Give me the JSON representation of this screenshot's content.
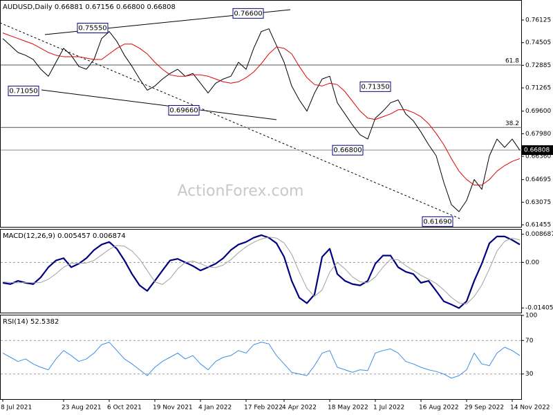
{
  "chart_data": [
    {
      "type": "line",
      "title": "AUDUSD,Daily 0.66881 0.67156 0.66800 0.66808",
      "watermark": "ActionForex.com",
      "ylim": [
        0.6131,
        0.7751
      ],
      "yticks": [
        0.76125,
        0.74505,
        0.72885,
        0.71265,
        {
          "value": 0.696,
          "label": "0.69600"
        },
        {
          "value": 0.6798,
          "label": "0.67980"
        },
        {
          "value": 0.6636,
          "label": "0.66360"
        },
        0.64695,
        0.63075,
        0.61455
      ],
      "last_price": 0.66808,
      "fib_levels": [
        {
          "label": "61.8",
          "value": 0.729
        },
        {
          "label": "38.2",
          "value": 0.6843
        }
      ],
      "annotations": [
        {
          "value": 0.7555,
          "label": "0.75550"
        },
        {
          "value": 0.766,
          "label": "0.76600"
        },
        {
          "value": 0.7105,
          "label": "0.71050"
        },
        {
          "value": 0.6966,
          "label": "0.69660"
        },
        {
          "value": 0.668,
          "label": "0.66800"
        },
        {
          "value": 0.7135,
          "label": "0.71350"
        },
        {
          "value": 0.6169,
          "label": "0.61690"
        }
      ],
      "series": [
        {
          "name": "AUDUSD",
          "color": "#000000",
          "values": [
            0.748,
            0.743,
            0.738,
            0.736,
            0.733,
            0.726,
            0.721,
            0.731,
            0.741,
            0.736,
            0.728,
            0.726,
            0.733,
            0.748,
            0.753,
            0.746,
            0.736,
            0.728,
            0.719,
            0.711,
            0.714,
            0.719,
            0.723,
            0.726,
            0.721,
            0.723,
            0.716,
            0.709,
            0.716,
            0.719,
            0.721,
            0.731,
            0.726,
            0.741,
            0.753,
            0.755,
            0.743,
            0.731,
            0.714,
            0.704,
            0.696,
            0.709,
            0.719,
            0.721,
            0.702,
            0.694,
            0.686,
            0.679,
            0.676,
            0.691,
            0.696,
            0.702,
            0.704,
            0.694,
            0.689,
            0.681,
            0.672,
            0.664,
            0.645,
            0.629,
            0.624,
            0.632,
            0.647,
            0.64,
            0.664,
            0.676,
            0.67,
            0.676,
            0.668
          ]
        },
        {
          "name": "MA",
          "color": "#e00000",
          "values": [
            0.752,
            0.75,
            0.748,
            0.746,
            0.744,
            0.741,
            0.738,
            0.736,
            0.735,
            0.735,
            0.735,
            0.734,
            0.733,
            0.733,
            0.737,
            0.741,
            0.744,
            0.744,
            0.741,
            0.737,
            0.731,
            0.726,
            0.722,
            0.721,
            0.721,
            0.722,
            0.722,
            0.721,
            0.719,
            0.717,
            0.716,
            0.717,
            0.72,
            0.724,
            0.73,
            0.737,
            0.742,
            0.741,
            0.737,
            0.728,
            0.72,
            0.715,
            0.714,
            0.716,
            0.715,
            0.71,
            0.703,
            0.696,
            0.691,
            0.69,
            0.692,
            0.694,
            0.697,
            0.697,
            0.695,
            0.692,
            0.687,
            0.68,
            0.672,
            0.662,
            0.653,
            0.647,
            0.643,
            0.643,
            0.647,
            0.653,
            0.657,
            0.66,
            0.662
          ]
        }
      ]
    },
    {
      "type": "line",
      "title": "MACD(12,26,9) 0.005457 0.006874",
      "ylim": [
        -0.0155,
        0.0101
      ],
      "yticks": [
        0.008687,
        {
          "value": 0,
          "label": "0.00"
        },
        -0.014056
      ],
      "level_lines": [
        0
      ],
      "series": [
        {
          "name": "MACD",
          "color": "#000080",
          "width": 2.2,
          "values": [
            -0.0063,
            -0.0067,
            -0.0057,
            -0.0063,
            -0.0067,
            -0.0046,
            -0.0015,
            0.0006,
            0.0013,
            -0.0015,
            -0.0004,
            0.0013,
            0.0038,
            0.0055,
            0.0063,
            0.0042,
            0.0006,
            -0.0036,
            -0.0071,
            -0.0088,
            -0.0057,
            -0.0025,
            0.0006,
            0.0011,
            0.0,
            -0.0011,
            -0.0025,
            -0.0015,
            -0.0004,
            0.0013,
            0.0038,
            0.0055,
            0.0063,
            0.0076,
            0.0084,
            0.0076,
            0.0059,
            0.0017,
            -0.0057,
            -0.0109,
            -0.0126,
            -0.0099,
            0.0017,
            0.0042,
            -0.0036,
            -0.0057,
            -0.0067,
            -0.0071,
            -0.0057,
            -0.0004,
            0.0021,
            0.0021,
            -0.0015,
            -0.0029,
            -0.0036,
            -0.0063,
            -0.0057,
            -0.0088,
            -0.012,
            -0.013,
            -0.0141,
            -0.012,
            -0.0057,
            -0.0004,
            0.0059,
            0.008,
            0.008,
            0.0069,
            0.0055
          ]
        },
        {
          "name": "Signal",
          "color": "#a0a0a0",
          "width": 1,
          "values": [
            -0.006,
            -0.0062,
            -0.0063,
            -0.0062,
            -0.0063,
            -0.0062,
            -0.0052,
            -0.0035,
            -0.0015,
            -0.0003,
            -0.0003,
            -0.0002,
            0.0006,
            0.0023,
            0.004,
            0.0052,
            0.005,
            0.0035,
            0.001,
            -0.0025,
            -0.006,
            -0.0068,
            -0.005,
            -0.002,
            0.0,
            0.0004,
            -0.0004,
            -0.0014,
            -0.0016,
            -0.0008,
            0.0008,
            0.003,
            0.0048,
            0.0062,
            0.0072,
            0.0078,
            0.0075,
            0.006,
            0.0025,
            -0.003,
            -0.008,
            -0.0105,
            -0.0085,
            -0.003,
            0.0,
            -0.002,
            -0.0045,
            -0.006,
            -0.0063,
            -0.0045,
            -0.0015,
            0.001,
            0.0008,
            -0.001,
            -0.0025,
            -0.004,
            -0.0052,
            -0.0065,
            -0.0085,
            -0.0108,
            -0.0125,
            -0.0128,
            -0.0105,
            -0.007,
            -0.002,
            0.0035,
            0.0065,
            0.0075,
            0.0069
          ]
        }
      ]
    },
    {
      "type": "line",
      "title": "RSI(14) 52.5382",
      "ylim": [
        0,
        100
      ],
      "yticks": [
        100,
        70,
        30
      ],
      "level_lines": [
        70,
        30
      ],
      "categories": [
        "8 Jul 2021",
        null,
        null,
        null,
        null,
        null,
        null,
        null,
        "23 Aug 2021",
        null,
        null,
        null,
        null,
        null,
        "6 Oct 2021",
        null,
        null,
        null,
        null,
        null,
        "19 Nov 2021",
        null,
        null,
        null,
        null,
        null,
        "4 Jan 2022",
        null,
        null,
        null,
        null,
        null,
        "17 Feb 2022",
        null,
        null,
        null,
        null,
        "4 Apr 2022",
        null,
        null,
        null,
        null,
        null,
        "18 May 2022",
        null,
        null,
        null,
        null,
        null,
        "1 Jul 2022",
        null,
        null,
        null,
        null,
        null,
        "16 Aug 2022",
        null,
        null,
        null,
        null,
        null,
        "29 Sep 2022",
        null,
        null,
        null,
        null,
        null,
        "14 Nov 2022",
        null
      ],
      "series": [
        {
          "name": "RSI",
          "color": "#3a8ee6",
          "width": 1,
          "values": [
            55,
            50,
            45,
            48,
            42,
            38,
            35,
            48,
            58,
            52,
            45,
            48,
            55,
            65,
            68,
            58,
            48,
            42,
            35,
            28,
            38,
            45,
            50,
            55,
            48,
            52,
            42,
            35,
            45,
            50,
            52,
            58,
            55,
            65,
            68,
            66,
            52,
            42,
            32,
            30,
            28,
            40,
            55,
            58,
            38,
            35,
            32,
            35,
            34,
            55,
            58,
            60,
            55,
            45,
            42,
            38,
            35,
            33,
            30,
            25,
            28,
            35,
            55,
            42,
            40,
            55,
            62,
            58,
            52
          ]
        }
      ]
    }
  ]
}
